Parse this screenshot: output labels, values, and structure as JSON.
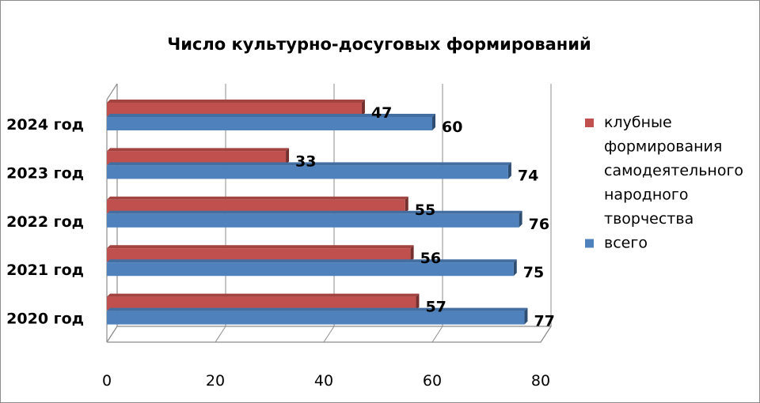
{
  "chart_data": {
    "type": "bar",
    "orientation": "horizontal",
    "three_d": true,
    "title": "Число культурно-досуговых формирований",
    "xlabel": "",
    "ylabel": "",
    "categories": [
      "2024 год",
      "2023 год",
      "2022 год",
      "2021 год",
      "2020 год"
    ],
    "series": [
      {
        "name": "клубные формирования самодеятельного народного творчества",
        "legend_lines": [
          "клубные",
          "формирования",
          "самодеятельного",
          "народного",
          "творчества"
        ],
        "color": "#c0504d",
        "values": [
          47,
          33,
          55,
          56,
          57
        ]
      },
      {
        "name": "всего",
        "legend_lines": [
          "всего"
        ],
        "color": "#4f81bd",
        "values": [
          60,
          74,
          76,
          75,
          77
        ]
      }
    ],
    "xlim": [
      0,
      80
    ],
    "xticks": [
      "0",
      "20",
      "40",
      "60",
      "80"
    ],
    "grid": true,
    "legend_position": "right"
  }
}
